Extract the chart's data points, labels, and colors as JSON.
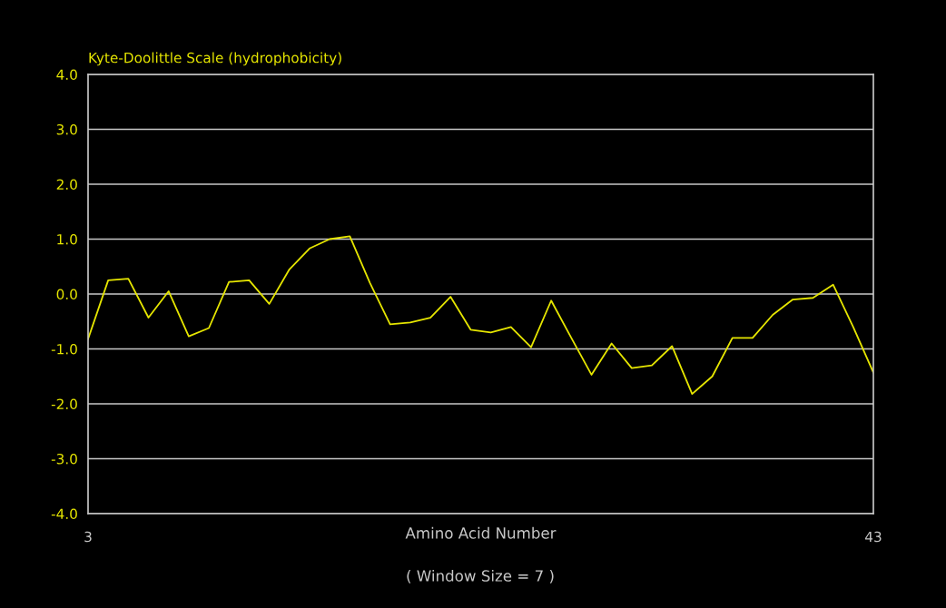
{
  "chart_data": {
    "type": "line",
    "title": "Kyte-Doolittle Scale (hydrophobicity)",
    "xlabel": "Amino Acid Number",
    "annotations": [
      "( Window Size = 7 )"
    ],
    "categories": [
      "3",
      null,
      null,
      null,
      null,
      null,
      null,
      null,
      null,
      null,
      null,
      null,
      null,
      null,
      null,
      null,
      null,
      null,
      null,
      null,
      null,
      null,
      null,
      null,
      null,
      null,
      null,
      null,
      null,
      null,
      null,
      null,
      null,
      null,
      null,
      null,
      null,
      null,
      null,
      "43"
    ],
    "series": [
      {
        "color": "#e6e600",
        "values": [
          -0.82,
          0.25,
          0.28,
          -0.43,
          0.05,
          -0.77,
          -0.62,
          0.22,
          0.25,
          -0.18,
          0.45,
          0.83,
          1.0,
          1.05,
          0.2,
          -0.55,
          -0.52,
          -0.43,
          -0.05,
          -0.65,
          -0.7,
          -0.6,
          -0.97,
          -0.12,
          -0.8,
          -1.47,
          -0.9,
          -1.35,
          -1.3,
          -0.95,
          -1.82,
          -1.5,
          -0.8,
          -0.8,
          -0.38,
          -0.1,
          -0.07,
          0.17,
          -0.6,
          -1.43
        ]
      }
    ],
    "ylim": [
      -4,
      4
    ],
    "yticks": [
      {
        "value": -4,
        "label": "-4.0"
      },
      {
        "value": -3,
        "label": "-3.0"
      },
      {
        "value": -2,
        "label": "-2.0"
      },
      {
        "value": -1,
        "label": "-1.0"
      },
      {
        "value": 0,
        "label": "0.0"
      },
      {
        "value": 1,
        "label": "1.0"
      },
      {
        "value": 2,
        "label": "2.0"
      },
      {
        "value": 3,
        "label": "3.0"
      },
      {
        "value": 4,
        "label": "4.0"
      }
    ],
    "grid": "y",
    "marker": "none",
    "line_style": "solid"
  }
}
